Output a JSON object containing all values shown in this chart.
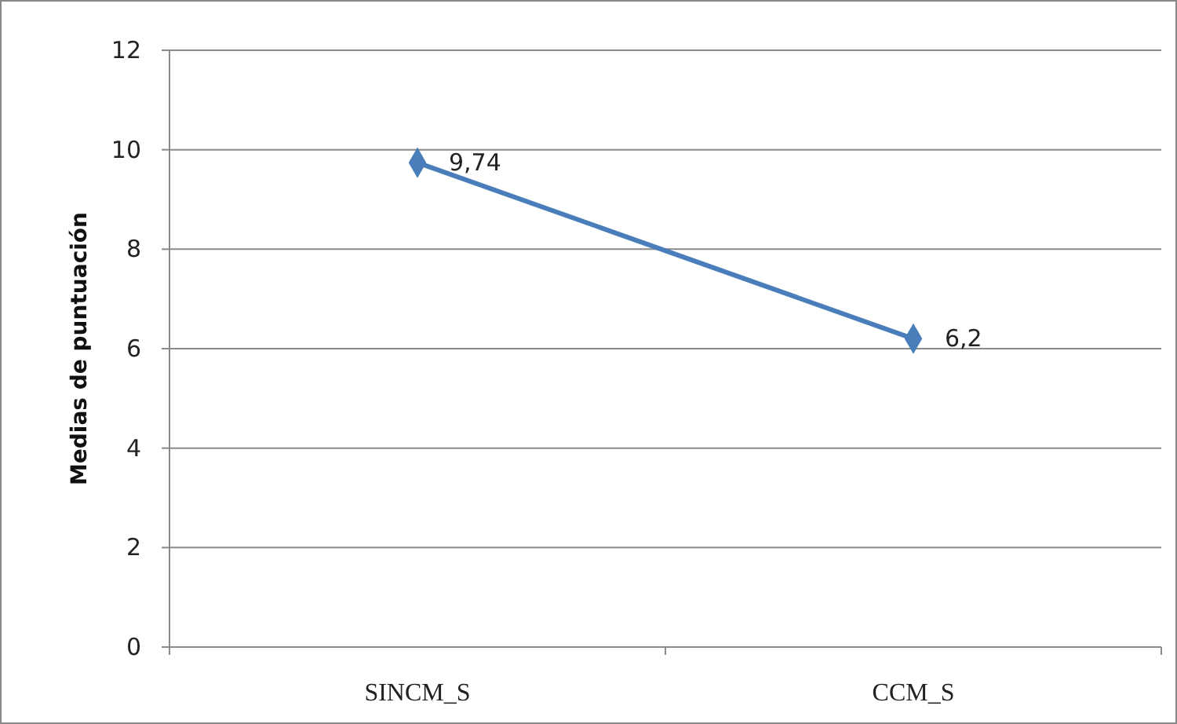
{
  "chart_data": {
    "type": "line",
    "ylabel": "Medias de puntuación",
    "categories": [
      "SINCM_S",
      "CCM_S"
    ],
    "series": [
      {
        "color": "#4a7ebb",
        "values": [
          9.74,
          6.2
        ],
        "value_labels": [
          "9,74",
          "6,2"
        ]
      }
    ],
    "ylim": [
      0,
      12
    ],
    "yticks": [
      0,
      2,
      4,
      6,
      8,
      10,
      12
    ],
    "grid": "y",
    "marker": "diamond",
    "line_style": "solid"
  }
}
